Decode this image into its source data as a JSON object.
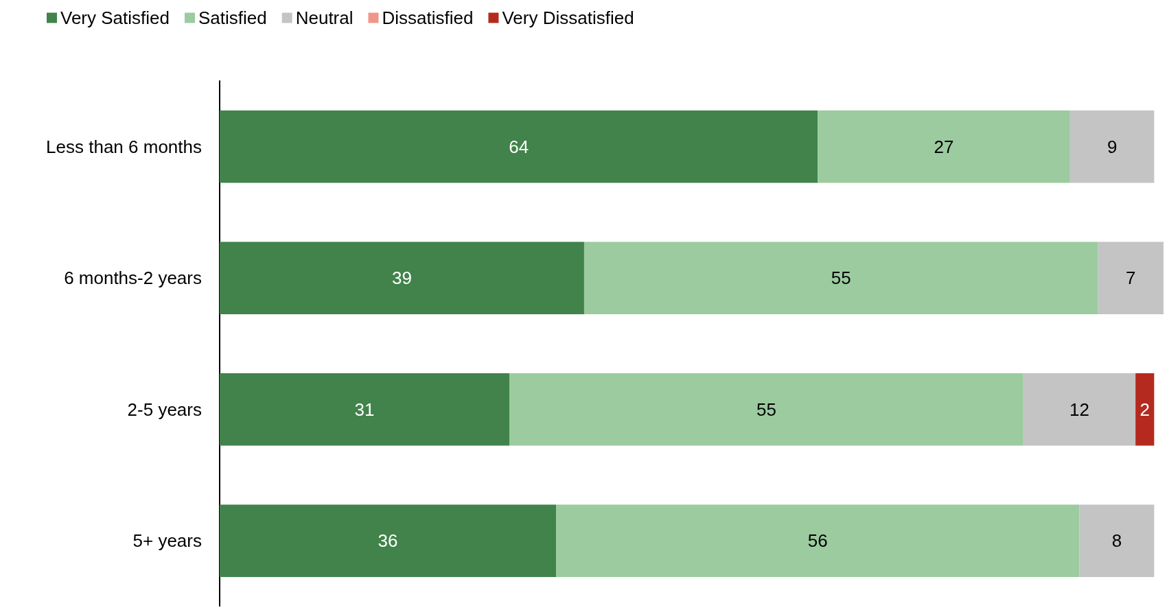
{
  "chart_data": {
    "type": "bar",
    "orientation": "horizontal",
    "stacked": true,
    "data_labels": true,
    "legend": "top left",
    "categories": [
      "Less than 6 months",
      "6 months-2 years",
      "2-5 years",
      "5+ years"
    ],
    "series": [
      {
        "name": "Very Satisfied",
        "color": "#41834a",
        "values": [
          64,
          39,
          31,
          36
        ]
      },
      {
        "name": "Satisfied",
        "color": "#9bcb9f",
        "values": [
          27,
          55,
          55,
          56
        ]
      },
      {
        "name": "Neutral",
        "color": "#c4c4c4",
        "values": [
          9,
          7,
          12,
          8
        ]
      },
      {
        "name": "Dissatisfied",
        "color": "#f0968a",
        "values": [
          null,
          null,
          null,
          null
        ]
      },
      {
        "name": "Very Dissatisfied",
        "color": "#b52a1e",
        "values": [
          null,
          null,
          2,
          null
        ]
      }
    ]
  }
}
